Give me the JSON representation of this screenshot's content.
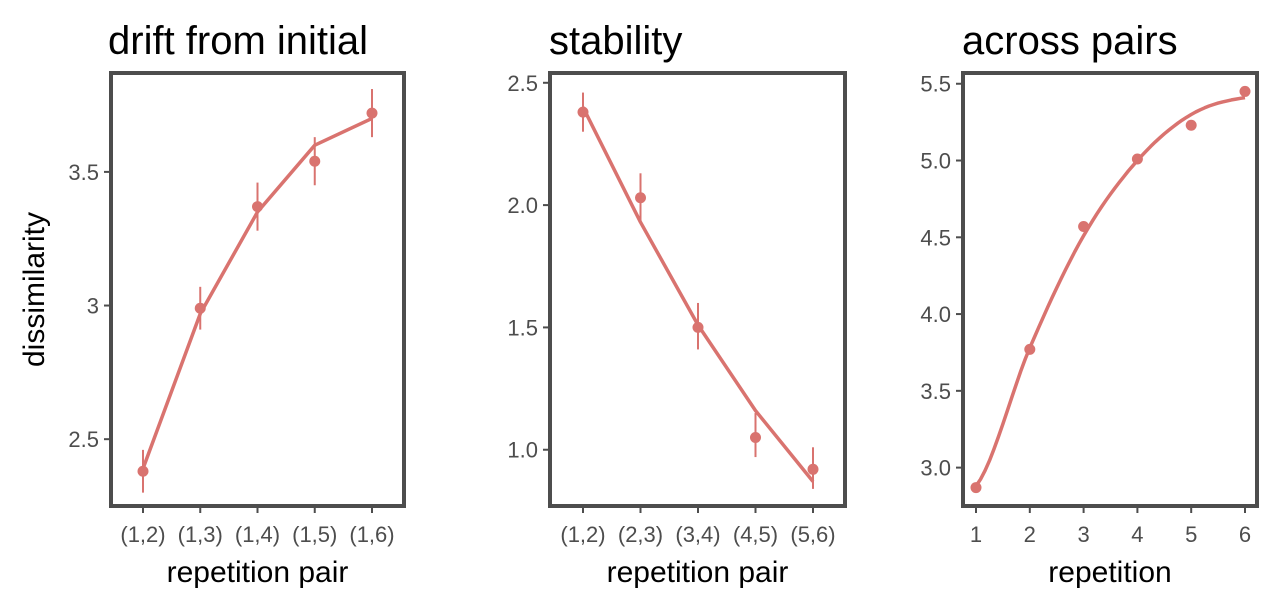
{
  "chart_data": [
    {
      "type": "line",
      "title": "drift from initial",
      "xlabel": "repetition pair",
      "ylabel": "dissimilarity",
      "categories": [
        "(1,2)",
        "(1,3)",
        "(1,4)",
        "(1,5)",
        "(1,6)"
      ],
      "points": [
        2.38,
        2.99,
        3.37,
        3.54,
        3.72
      ],
      "error_low": [
        2.3,
        2.91,
        3.28,
        3.45,
        3.63
      ],
      "error_high": [
        2.46,
        3.07,
        3.46,
        3.63,
        3.81
      ],
      "fit": [
        2.39,
        2.97,
        3.35,
        3.6,
        3.7
      ],
      "yticks": [
        2.5,
        3.0,
        3.5
      ],
      "ylim": [
        2.25,
        3.87
      ],
      "color": "#d9736f",
      "grid": false
    },
    {
      "type": "line",
      "title": "stability",
      "xlabel": "repetition pair",
      "ylabel": "",
      "categories": [
        "(1,2)",
        "(2,3)",
        "(3,4)",
        "(4,5)",
        "(5,6)"
      ],
      "points": [
        2.38,
        2.03,
        1.5,
        1.05,
        0.92
      ],
      "error_low": [
        2.3,
        1.93,
        1.41,
        0.97,
        0.84
      ],
      "error_high": [
        2.46,
        2.13,
        1.6,
        1.15,
        1.01
      ],
      "fit": [
        2.4,
        1.93,
        1.51,
        1.16,
        0.87
      ],
      "yticks": [
        "1.0",
        "1.5",
        "2.0",
        "2.5"
      ],
      "ylim": [
        0.77,
        2.54
      ],
      "color": "#d9736f",
      "grid": false
    },
    {
      "type": "line",
      "title": "across pairs",
      "xlabel": "repetition",
      "ylabel": "",
      "categories": [
        "1",
        "2",
        "3",
        "4",
        "5",
        "6"
      ],
      "points": [
        2.87,
        3.77,
        4.57,
        5.01,
        5.23,
        5.45
      ],
      "error_low": [],
      "error_high": [],
      "fit": [
        2.88,
        3.78,
        4.51,
        5.0,
        5.3,
        5.41
      ],
      "yticks": [
        "3.0",
        "3.5",
        "4.0",
        "4.5",
        "5.0",
        "5.5"
      ],
      "ylim": [
        2.75,
        5.57
      ],
      "color": "#d9736f",
      "grid": false
    }
  ]
}
